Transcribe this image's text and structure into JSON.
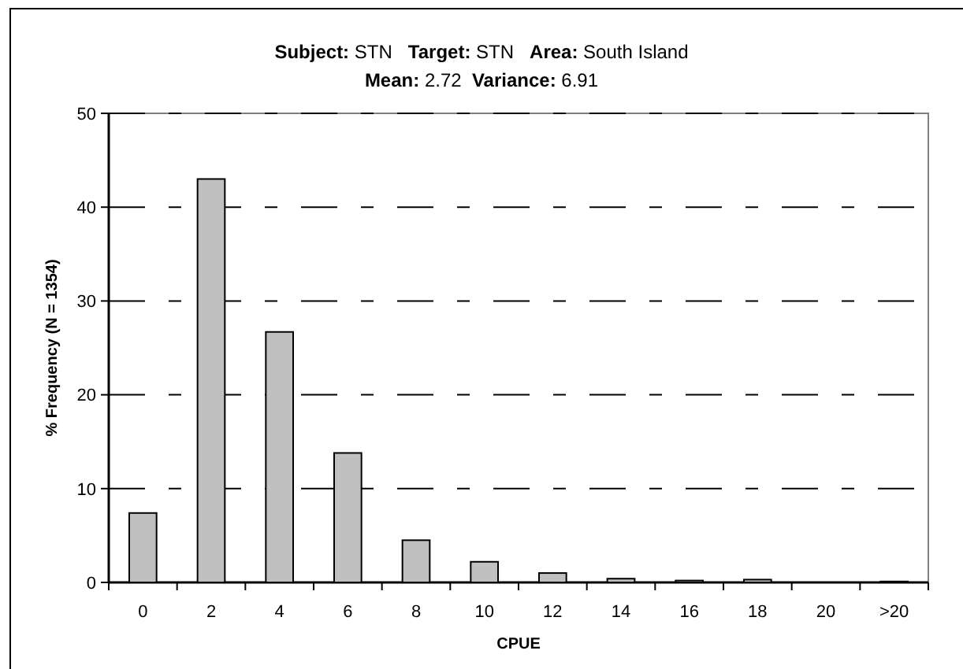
{
  "chart_data": {
    "type": "bar",
    "title": "Subject: STN   Target: STN   Area: South Island",
    "subtitle": "Mean: 2.72  Variance: 6.91",
    "xlabel": "CPUE",
    "ylabel": "% Frequency (N = 1354)",
    "categories": [
      "0",
      "2",
      "4",
      "6",
      "8",
      "10",
      "12",
      "14",
      "16",
      "18",
      "20",
      ">20"
    ],
    "values": [
      7.4,
      43.0,
      26.7,
      13.8,
      4.5,
      2.2,
      1.0,
      0.4,
      0.2,
      0.3,
      0,
      0.1
    ],
    "color": "#c0c0c0",
    "ylim": [
      0,
      50
    ],
    "yticks": [
      0,
      10,
      20,
      30,
      40,
      50
    ],
    "grid": "y"
  }
}
